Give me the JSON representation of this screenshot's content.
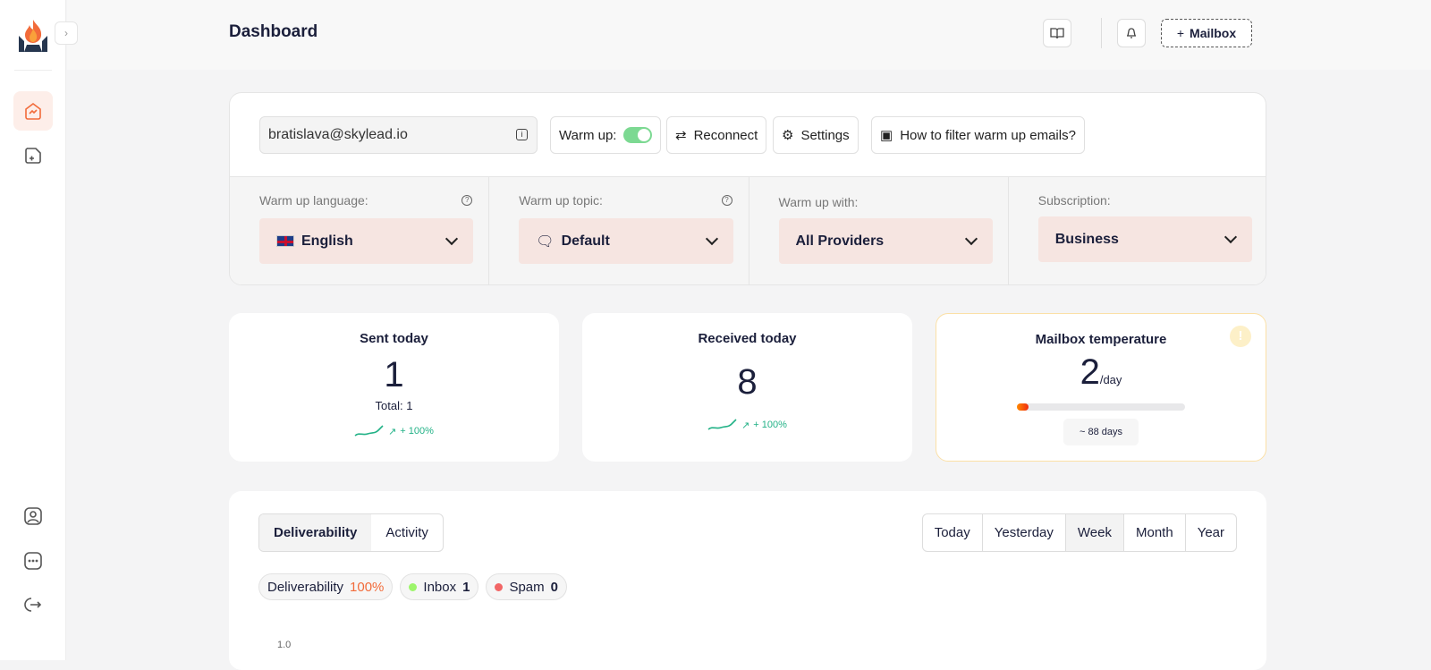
{
  "header": {
    "title": "Dashboard",
    "mailbox_button": "Mailbox",
    "mailbox_button_icon": "+"
  },
  "account": {
    "email": "bratislava@skylead.io",
    "warmup_label": "Warm up:",
    "warmup_enabled": true,
    "reconnect": "Reconnect",
    "settings": "Settings",
    "filter_help": "How to filter warm up emails?"
  },
  "selectors": [
    {
      "label": "Warm up language:",
      "value": "English",
      "icon": "uk-flag-icon",
      "help": true
    },
    {
      "label": "Warm up topic:",
      "value": "Default",
      "icon": "chat-icon",
      "help": true
    },
    {
      "label": "Warm up with:",
      "value": "All Providers"
    },
    {
      "label": "Subscription:",
      "value": "Business"
    }
  ],
  "stats": {
    "sent": {
      "title": "Sent today",
      "value": "1",
      "total": "Total: 1",
      "trend": "+ 100%"
    },
    "received": {
      "title": "Received today",
      "value": "8",
      "trend": "+ 100%"
    },
    "temperature": {
      "title": "Mailbox temperature",
      "value": "2",
      "unit": "/day",
      "progress_percent": 2,
      "eta": "~ 88 days",
      "warning": "!"
    }
  },
  "chart_panel": {
    "tabs": [
      "Deliverability",
      "Activity"
    ],
    "active_tab": "Deliverability",
    "ranges": [
      "Today",
      "Yesterday",
      "Week",
      "Month",
      "Year"
    ],
    "active_range": "Week",
    "legend": {
      "deliverability_label": "Deliverability",
      "deliverability_value": "100%",
      "inbox_label": "Inbox",
      "inbox_value": "1",
      "spam_label": "Spam",
      "spam_value": "0"
    },
    "y_tick_top": "1.0"
  },
  "colors": {
    "accent": "#f26b3a",
    "inbox": "#9df56b",
    "spam": "#f26666",
    "toggle": "#7cd992",
    "trend": "#23b287"
  }
}
